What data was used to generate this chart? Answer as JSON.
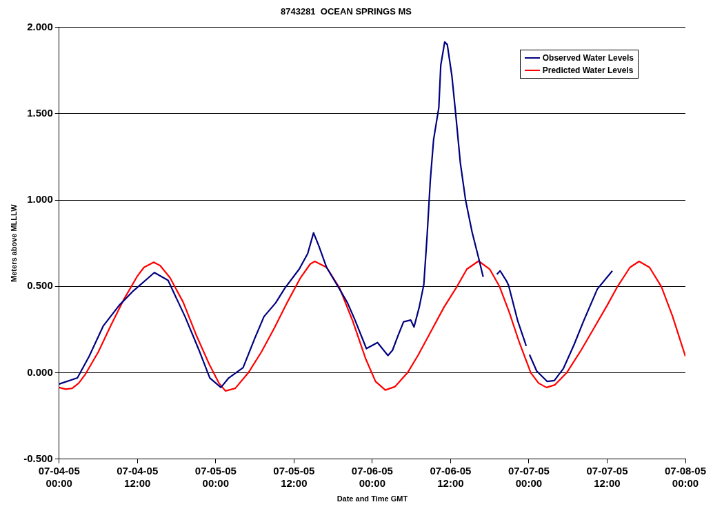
{
  "chart_data": {
    "type": "line",
    "title": "8743281  OCEAN SPRINGS MS",
    "xlabel": "Date and Time GMT",
    "ylabel": "Meters above MLLLW",
    "xlim": [
      "--07-04T00:00",
      "--07-08T00:00"
    ],
    "xticks": [
      {
        "value": "--07-04T00:00",
        "label": "07-04-05 00:00"
      },
      {
        "value": "--07-04T12:00",
        "label": "07-04-05 12:00"
      },
      {
        "value": "--07-05T00:00",
        "label": "07-05-05 00:00"
      },
      {
        "value": "--07-05T12:00",
        "label": "07-05-05 12:00"
      },
      {
        "value": "--07-06T00:00",
        "label": "07-06-05 00:00"
      },
      {
        "value": "--07-06T12:00",
        "label": "07-06-05 12:00"
      },
      {
        "value": "--07-07T00:00",
        "label": "07-07-05 00:00"
      },
      {
        "value": "--07-07T12:00",
        "label": "07-07-05 12:00"
      },
      {
        "value": "--07-08T00:00",
        "label": "07-08-05 00:00"
      }
    ],
    "ylim": [
      -0.5,
      2
    ],
    "yticks": [
      {
        "value": -0.5,
        "label": "-0.500"
      },
      {
        "value": 0,
        "label": "0.000"
      },
      {
        "value": 0.5,
        "label": "0.500"
      },
      {
        "value": 1,
        "label": "1.000"
      },
      {
        "value": 1.5,
        "label": "1.500"
      },
      {
        "value": 2,
        "label": "2.000"
      }
    ],
    "grid": "y",
    "legend": "top right",
    "marker": "none",
    "line_style": "solid",
    "series": [
      {
        "name": "Observed Water Levels",
        "color": "#000080",
        "x": [
          "--07-04T00:00",
          "--07-04T02:48",
          "--07-04T04:36",
          "--07-04T06:45",
          "--07-04T09:12",
          "--07-04T11:24",
          "--07-04T14:36",
          "--07-04T16:42",
          "--07-04T19:18",
          "--07-04T21:24",
          "--07-04T23:06",
          "--07-05T00:48",
          "--07-05T02:00",
          "--07-05T04:12",
          "--07-05T06:00",
          "--07-05T07:24",
          "--07-05T09:12",
          "--07-05T10:36",
          "--07-05T12:48",
          "--07-05T14:06",
          "--07-05T15:00",
          "--07-05T15:48",
          "--07-05T17:00",
          "--07-05T18:54",
          "--07-05T20:12",
          "--07-05T21:18",
          "--07-05T23:06",
          "--07-06T00:48",
          "--07-06T02:24",
          "--07-06T03:06",
          "--07-06T03:54",
          "--07-06T04:48",
          "--07-06T05:54",
          "--07-06T06:24",
          "--07-06T07:12",
          "--07-06T07:54",
          "--07-06T08:24",
          "--07-06T08:54",
          "--07-06T09:24",
          "--07-06T10:12",
          "--07-06T10:30",
          "--07-06T11:06",
          "--07-06T11:30",
          "--07-06T12:12",
          "--07-06T12:48",
          "--07-06T13:30",
          "--07-06T14:18",
          "--07-06T15:18",
          "--07-06T16:18",
          "--07-06T17:00",
          "--07-06T18:00",
          "--07-06T19:06",
          "--07-06T19:36",
          "--07-06T20:36",
          "--07-06T20:54",
          "--07-06T22:18",
          "--07-06T23:36",
          "--07-06T23:51",
          "--07-07T00:06",
          "--07-07T01:12",
          "--07-07T02:48",
          "--07-07T03:54",
          "--07-07T05:18",
          "--07-07T06:54",
          "--07-07T08:24",
          "--07-07T10:30",
          "--07-07T12:48"
        ],
        "values": [
          -0.065,
          -0.03,
          0.095,
          0.27,
          0.39,
          0.475,
          0.58,
          0.535,
          0.325,
          0.135,
          -0.03,
          -0.085,
          -0.03,
          0.03,
          0.2,
          0.325,
          0.405,
          0.49,
          0.6,
          0.69,
          0.81,
          0.735,
          0.61,
          0.49,
          0.405,
          0.31,
          0.14,
          0.175,
          0.1,
          0.13,
          0.21,
          0.295,
          0.305,
          0.265,
          0.38,
          0.51,
          0.79,
          1.115,
          1.35,
          1.535,
          1.78,
          1.915,
          1.9,
          1.72,
          1.495,
          1.215,
          1,
          0.815,
          0.665,
          0.555,
          null,
          0.57,
          0.59,
          0.53,
          0.505,
          0.3,
          0.155,
          null,
          0.105,
          0.01,
          -0.05,
          -0.045,
          0.025,
          0.16,
          0.3,
          0.485,
          0.59
        ]
      },
      {
        "name": "Predicted Water Levels",
        "color": "#ff0000",
        "x": [
          "--07-04T00:00",
          "--07-04T01:00",
          "--07-04T02:00",
          "--07-04T03:00",
          "--07-04T04:00",
          "--07-04T06:00",
          "--07-04T08:00",
          "--07-04T10:00",
          "--07-04T12:00",
          "--07-04T13:00",
          "--07-04T14:30",
          "--07-04T15:30",
          "--07-04T17:00",
          "--07-04T19:00",
          "--07-04T21:00",
          "--07-04T23:00",
          "--07-05T00:30",
          "--07-05T01:30",
          "--07-05T03:00",
          "--07-05T05:00",
          "--07-05T07:00",
          "--07-05T09:00",
          "--07-05T11:00",
          "--07-05T13:00",
          "--07-05T14:30",
          "--07-05T15:12",
          "--07-05T17:00",
          "--07-05T19:00",
          "--07-05T21:00",
          "--07-05T23:00",
          "--07-06T00:30",
          "--07-06T02:00",
          "--07-06T03:30",
          "--07-06T05:24",
          "--07-06T07:00",
          "--07-06T09:00",
          "--07-06T11:00",
          "--07-06T13:00",
          "--07-06T14:30",
          "--07-06T16:18",
          "--07-06T18:00",
          "--07-06T19:30",
          "--07-06T21:00",
          "--07-06T22:30",
          "--07-07T00:18",
          "--07-07T01:30",
          "--07-07T02:42",
          "--07-07T04:00",
          "--07-07T05:48",
          "--07-07T08:00",
          "--07-07T10:00",
          "--07-07T12:00",
          "--07-07T13:36",
          "--07-07T15:30",
          "--07-07T16:54",
          "--07-07T18:30",
          "--07-07T20:18",
          "--07-07T22:00",
          "--07-08T00:00"
        ],
        "values": [
          -0.085,
          -0.095,
          -0.09,
          -0.06,
          -0.01,
          0.12,
          0.28,
          0.43,
          0.56,
          0.61,
          0.64,
          0.62,
          0.55,
          0.41,
          0.22,
          0.05,
          -0.06,
          -0.105,
          -0.09,
          0,
          0.12,
          0.26,
          0.41,
          0.55,
          0.63,
          0.645,
          0.61,
          0.49,
          0.3,
          0.08,
          -0.05,
          -0.1,
          -0.08,
          0,
          0.1,
          0.24,
          0.38,
          0.5,
          0.6,
          0.647,
          0.6,
          0.5,
          0.35,
          0.18,
          0,
          -0.06,
          -0.085,
          -0.07,
          0,
          0.13,
          0.26,
          0.39,
          0.5,
          0.61,
          0.645,
          0.61,
          0.5,
          0.33,
          0.095
        ]
      }
    ]
  }
}
